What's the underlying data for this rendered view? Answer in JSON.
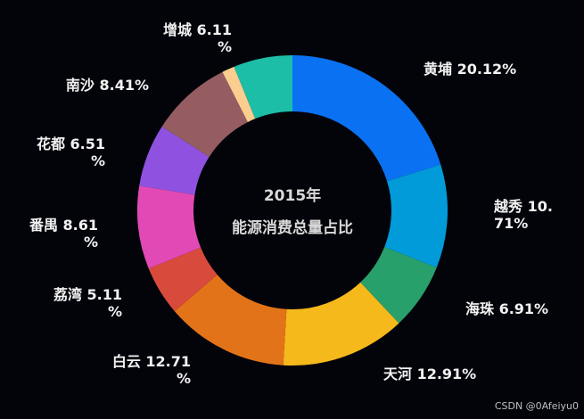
{
  "chart_data": {
    "type": "pie",
    "variant": "donut",
    "title_lines": [
      "2015年",
      "能源消费总量占比"
    ],
    "legend": "none",
    "start_at": "top",
    "direction": "clockwise",
    "slices": [
      {
        "name": "黄埔",
        "value": 20.12,
        "label": [
          "黄埔 20.12%"
        ],
        "color": "#0a72f2"
      },
      {
        "name": "越秀",
        "value": 10.71,
        "label": [
          "越秀 10.",
          "71%"
        ],
        "color": "#029bd9"
      },
      {
        "name": "海珠",
        "value": 6.91,
        "label": [
          "海珠 6.91%"
        ],
        "color": "#28a06b"
      },
      {
        "name": "天河",
        "value": 12.91,
        "label": [
          "天河 12.91%"
        ],
        "color": "#f6b91b"
      },
      {
        "name": "白云",
        "value": 12.71,
        "label": [
          "白云 12.71",
          "%"
        ],
        "color": "#e37319"
      },
      {
        "name": "荔湾",
        "value": 5.11,
        "label": [
          "荔湾 5.11",
          "%"
        ],
        "color": "#d84a3b"
      },
      {
        "name": "番禺",
        "value": 8.61,
        "label": [
          "番禺 8.61",
          "%"
        ],
        "color": "#e14ab5"
      },
      {
        "name": "花都",
        "value": 6.51,
        "label": [
          "花都 6.51",
          "%"
        ],
        "color": "#8f52e0"
      },
      {
        "name": "南沙",
        "value": 8.41,
        "label": [
          "南沙 8.41%"
        ],
        "color": "#955d61"
      },
      {
        "name": "",
        "value": 1.3,
        "label": [],
        "color": "#fbcd8f"
      },
      {
        "name": "增城",
        "value": 6.11,
        "label": [
          "增城 6.11",
          "%"
        ],
        "color": "#1cbea8"
      }
    ]
  },
  "watermark": "CSDN @0Afeiyu0"
}
